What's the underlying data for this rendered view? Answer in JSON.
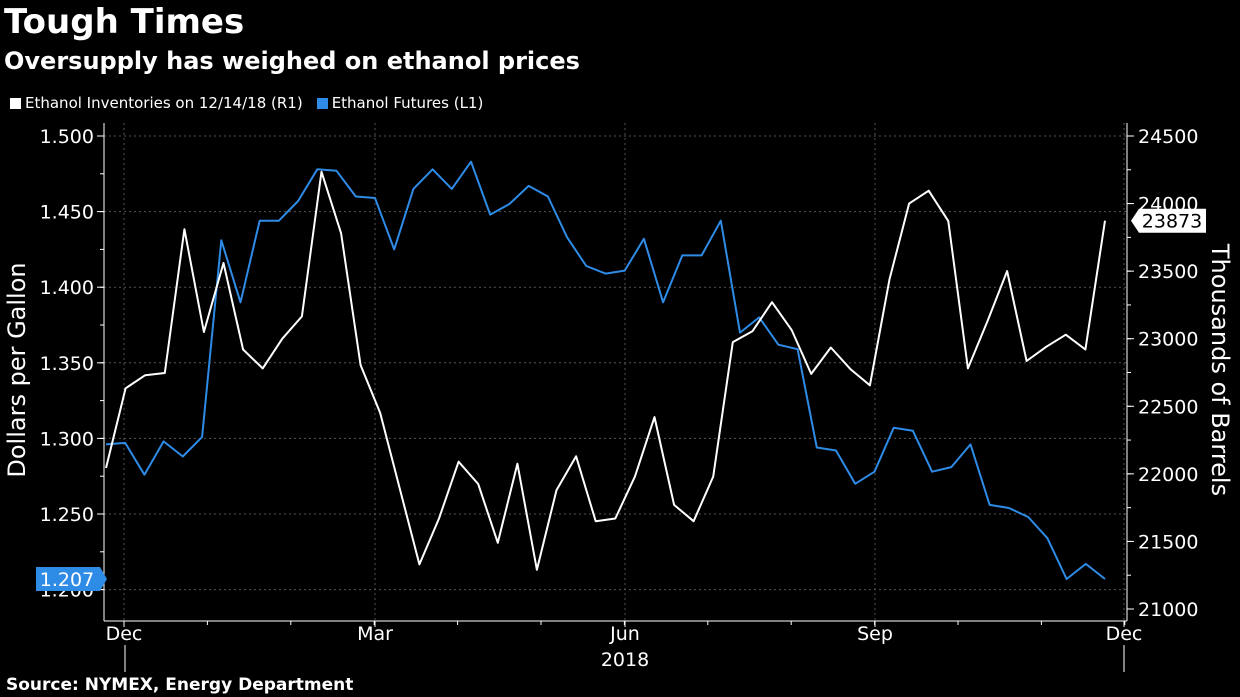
{
  "title": "Tough Times",
  "subtitle": "Oversupply has weighed on ethanol prices",
  "source": "Source: NYMEX, Energy Department",
  "legend": [
    {
      "label": "Ethanol Inventories  on 12/14/18 (R1)",
      "color": "#ffffff"
    },
    {
      "label": "Ethanol Futures  (L1)",
      "color": "#2e8be6"
    }
  ],
  "chart_data": {
    "type": "line",
    "title": "Tough Times",
    "subtitle": "Oversupply has weighed on ethanol prices",
    "x_ticks": [
      "Dec",
      "Mar",
      "Jun",
      "Sep",
      "Dec"
    ],
    "x_year_label": "2018",
    "left_axis": {
      "label": "Dollars per Gallon",
      "ylim": [
        1.19,
        1.5
      ],
      "ticks": [
        "1.500",
        "1.450",
        "1.400",
        "1.350",
        "1.300",
        "1.250",
        "1.200"
      ]
    },
    "right_axis": {
      "label": "Thousands of Barrels",
      "ylim": [
        21000,
        24500
      ],
      "ticks": [
        "24500",
        "24000",
        "23500",
        "23000",
        "22500",
        "22000",
        "21500",
        "21000"
      ]
    },
    "last_value_labels": {
      "futures": "1.207",
      "inventories": "23873"
    },
    "series": [
      {
        "name": "Ethanol Futures  (L1)",
        "axis": "left",
        "color": "#2e8be6",
        "values": [
          1.296,
          1.297,
          1.276,
          1.298,
          1.288,
          1.301,
          1.431,
          1.39,
          1.444,
          1.444,
          1.457,
          1.478,
          1.477,
          1.46,
          1.459,
          1.425,
          1.465,
          1.478,
          1.465,
          1.483,
          1.448,
          1.455,
          1.467,
          1.46,
          1.433,
          1.414,
          1.409,
          1.411,
          1.432,
          1.39,
          1.421,
          1.421,
          1.444,
          1.37,
          1.38,
          1.362,
          1.359,
          1.294,
          1.292,
          1.27,
          1.278,
          1.307,
          1.305,
          1.278,
          1.281,
          1.296,
          1.256,
          1.254,
          1.248,
          1.234,
          1.207,
          1.217,
          1.207
        ]
      },
      {
        "name": "Ethanol Inventories  on 12/14/18 (R1)",
        "axis": "right",
        "color": "#ffffff",
        "values": [
          22043,
          22633,
          22730,
          22746,
          23810,
          23050,
          23560,
          22920,
          22780,
          23000,
          23165,
          24235,
          23780,
          22805,
          22450,
          21890,
          21330,
          21670,
          22090,
          21925,
          21490,
          22075,
          21290,
          21880,
          22130,
          21650,
          21670,
          21980,
          22420,
          21770,
          21650,
          21980,
          22975,
          23055,
          23270,
          23065,
          22740,
          22935,
          22775,
          22655,
          23440,
          24000,
          24095,
          23870,
          22780,
          23130,
          23500,
          22835,
          22940,
          23030,
          22920,
          23873
        ]
      }
    ]
  }
}
